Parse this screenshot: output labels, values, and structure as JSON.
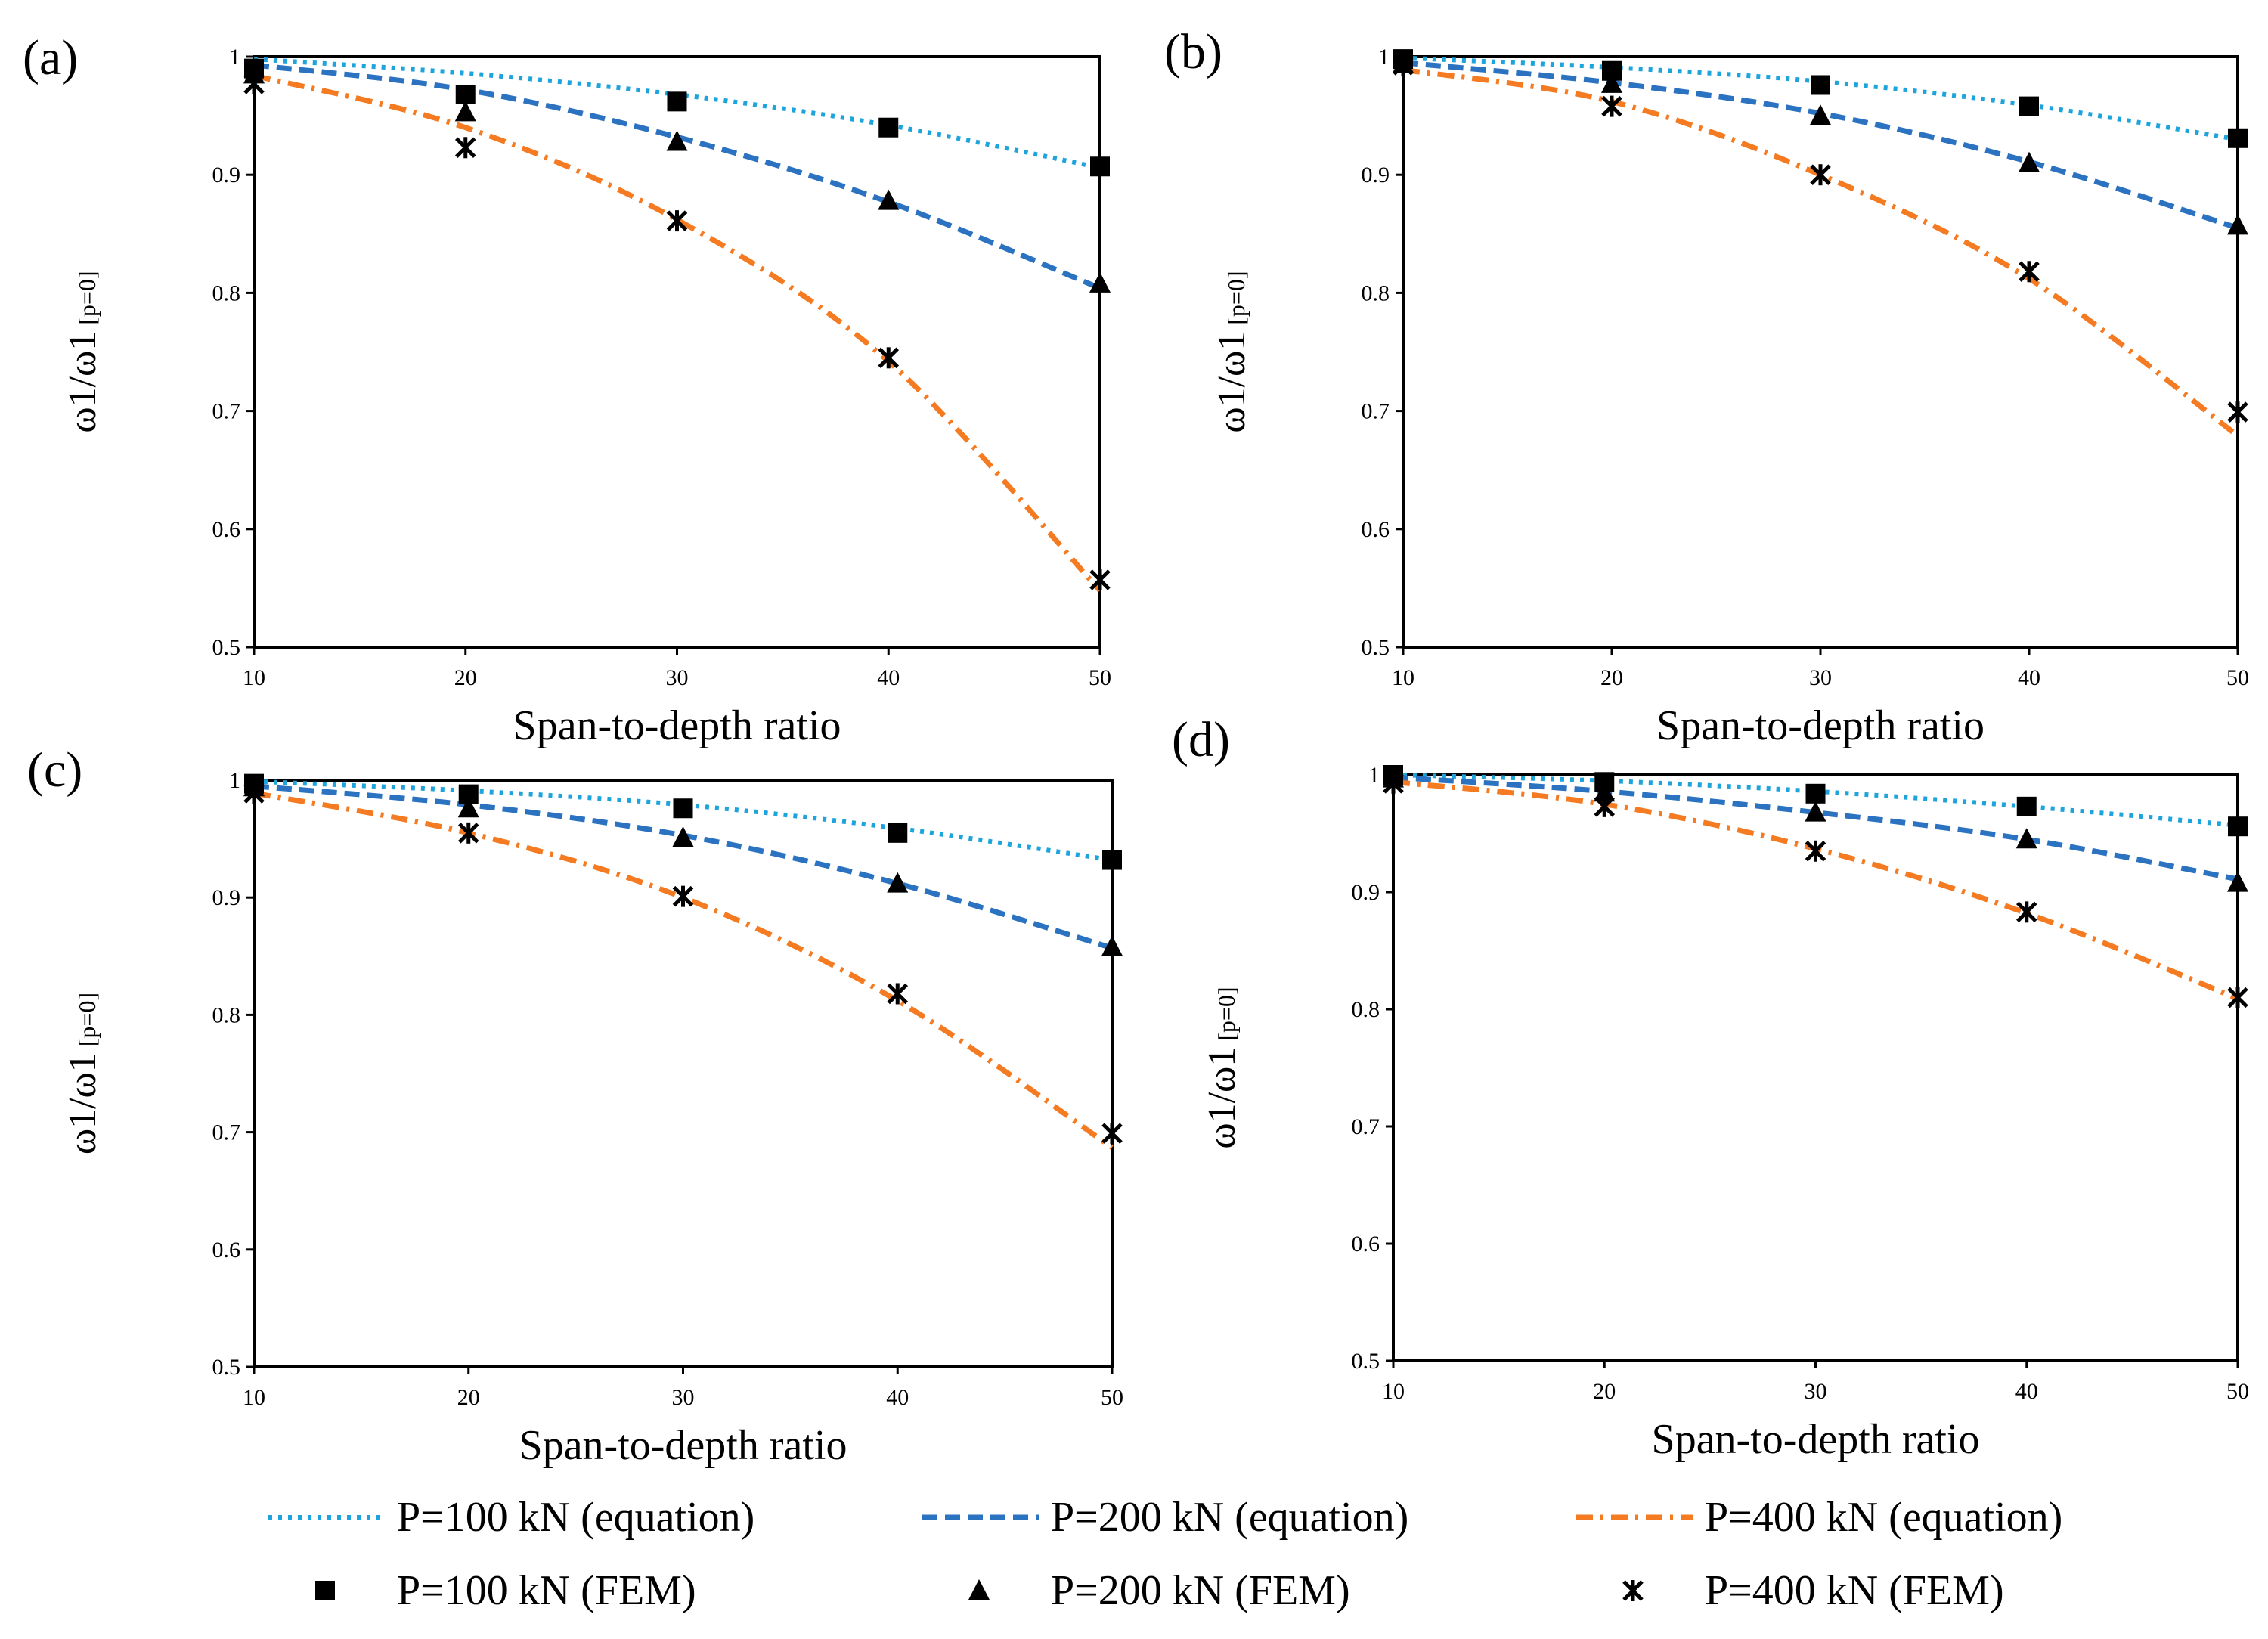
{
  "chart_data": [
    {
      "type": "line",
      "panel_label": "(a)",
      "xlabel": "Span-to-depth ratio",
      "ylabel_main": "ω1/ω1",
      "ylabel_sub": "[p=0]",
      "x": [
        10,
        20,
        30,
        40,
        50
      ],
      "xlim": [
        10,
        50
      ],
      "ylim": [
        0.5,
        1
      ],
      "xticks": [
        "10",
        "20",
        "30",
        "40",
        "50"
      ],
      "yticks": [
        "0.5",
        "0.6",
        "0.7",
        "0.8",
        "0.9",
        "1"
      ],
      "series": [
        {
          "name": "P=100 kN (equation)",
          "kind": "equation",
          "values": [
            0.998,
            0.986,
            0.968,
            0.942,
            0.906
          ]
        },
        {
          "name": "P=200 kN (equation)",
          "kind": "equation",
          "values": [
            0.993,
            0.972,
            0.932,
            0.877,
            0.804
          ]
        },
        {
          "name": "P=400 kN (equation)",
          "kind": "equation",
          "values": [
            0.984,
            0.94,
            0.862,
            0.742,
            0.548
          ]
        },
        {
          "name": "P=100 kN (FEM)",
          "kind": "fem",
          "values": [
            0.99,
            0.968,
            0.962,
            0.94,
            0.907
          ]
        },
        {
          "name": "P=200 kN (FEM)",
          "kind": "fem",
          "values": [
            0.985,
            0.953,
            0.928,
            0.878,
            0.808
          ]
        },
        {
          "name": "P=400 kN (FEM)",
          "kind": "fem",
          "values": [
            0.977,
            0.923,
            0.861,
            0.745,
            0.557
          ]
        }
      ]
    },
    {
      "type": "line",
      "panel_label": "(b)",
      "xlabel": "Span-to-depth ratio",
      "ylabel_main": "ω1/ω1",
      "ylabel_sub": "[p=0]",
      "x": [
        10,
        20,
        30,
        40,
        50
      ],
      "xlim": [
        10,
        50
      ],
      "ylim": [
        0.5,
        1
      ],
      "xticks": [
        "10",
        "20",
        "30",
        "40",
        "50"
      ],
      "yticks": [
        "0.5",
        "0.6",
        "0.7",
        "0.8",
        "0.9",
        "1"
      ],
      "series": [
        {
          "name": "P=100 kN (equation)",
          "kind": "equation",
          "values": [
            0.999,
            0.991,
            0.979,
            0.959,
            0.93
          ]
        },
        {
          "name": "P=200 kN (equation)",
          "kind": "equation",
          "values": [
            0.995,
            0.978,
            0.952,
            0.911,
            0.855
          ]
        },
        {
          "name": "P=400 kN (equation)",
          "kind": "equation",
          "values": [
            0.989,
            0.962,
            0.9,
            0.812,
            0.679
          ]
        },
        {
          "name": "P=100 kN (FEM)",
          "kind": "fem",
          "values": [
            0.998,
            0.988,
            0.976,
            0.958,
            0.931
          ]
        },
        {
          "name": "P=200 kN (FEM)",
          "kind": "fem",
          "values": [
            0.994,
            0.977,
            0.95,
            0.91,
            0.857
          ]
        },
        {
          "name": "P=400 kN (FEM)",
          "kind": "fem",
          "values": [
            0.993,
            0.958,
            0.9,
            0.818,
            0.699
          ]
        }
      ]
    },
    {
      "type": "line",
      "panel_label": "(c)",
      "xlabel": "Span-to-depth ratio",
      "ylabel_main": "ω1/ω1",
      "ylabel_sub": "[p=0]",
      "x": [
        10,
        20,
        30,
        40,
        50
      ],
      "xlim": [
        10,
        50
      ],
      "ylim": [
        0.5,
        1
      ],
      "xticks": [
        "10",
        "20",
        "30",
        "40",
        "50"
      ],
      "yticks": [
        "0.5",
        "0.6",
        "0.7",
        "0.8",
        "0.9",
        "1"
      ],
      "series": [
        {
          "name": "P=100 kN (equation)",
          "kind": "equation",
          "values": [
            0.999,
            0.991,
            0.979,
            0.959,
            0.932
          ]
        },
        {
          "name": "P=200 kN (equation)",
          "kind": "equation",
          "values": [
            0.995,
            0.979,
            0.953,
            0.912,
            0.857
          ]
        },
        {
          "name": "P=400 kN (equation)",
          "kind": "equation",
          "values": [
            0.989,
            0.955,
            0.9,
            0.812,
            0.687
          ]
        },
        {
          "name": "P=100 kN (FEM)",
          "kind": "fem",
          "values": [
            0.997,
            0.988,
            0.976,
            0.955,
            0.932
          ]
        },
        {
          "name": "P=200 kN (FEM)",
          "kind": "fem",
          "values": [
            0.994,
            0.976,
            0.951,
            0.912,
            0.858
          ]
        },
        {
          "name": "P=400 kN (FEM)",
          "kind": "fem",
          "values": [
            0.989,
            0.955,
            0.901,
            0.818,
            0.699
          ]
        }
      ]
    },
    {
      "type": "line",
      "panel_label": "(d)",
      "xlabel": "Span-to-depth ratio",
      "ylabel_main": "ω1/ω1",
      "ylabel_sub": "[p=0]",
      "x": [
        10,
        20,
        30,
        40,
        50
      ],
      "xlim": [
        10,
        50
      ],
      "ylim": [
        0.5,
        1
      ],
      "xticks": [
        "10",
        "20",
        "30",
        "40",
        "50"
      ],
      "yticks": [
        "0.5",
        "0.6",
        "0.7",
        "0.8",
        "0.9",
        "1"
      ],
      "series": [
        {
          "name": "P=100 kN (equation)",
          "kind": "equation",
          "values": [
            1.0,
            0.995,
            0.986,
            0.973,
            0.957
          ]
        },
        {
          "name": "P=200 kN (equation)",
          "kind": "equation",
          "values": [
            0.998,
            0.986,
            0.968,
            0.945,
            0.911
          ]
        },
        {
          "name": "P=400 kN (equation)",
          "kind": "equation",
          "values": [
            0.994,
            0.975,
            0.937,
            0.882,
            0.809
          ]
        },
        {
          "name": "P=100 kN (FEM)",
          "kind": "fem",
          "values": [
            1.0,
            0.994,
            0.984,
            0.973,
            0.956
          ]
        },
        {
          "name": "P=200 kN (FEM)",
          "kind": "fem",
          "values": [
            0.997,
            0.985,
            0.968,
            0.945,
            0.908
          ]
        },
        {
          "name": "P=400 kN (FEM)",
          "kind": "fem",
          "values": [
            0.993,
            0.973,
            0.935,
            0.883,
            0.81
          ]
        }
      ]
    }
  ],
  "legend": {
    "items": [
      {
        "label": "P=100 kN (equation)",
        "style": "dotted",
        "color": "#1ea4dc"
      },
      {
        "label": "P=200 kN (equation)",
        "style": "dashed",
        "color": "#2b72c0"
      },
      {
        "label": "P=400 kN (equation)",
        "style": "dashdot",
        "color": "#f47b22"
      },
      {
        "label": "P=100 kN (FEM)",
        "style": "square",
        "color": "#000000"
      },
      {
        "label": "P=200 kN (FEM)",
        "style": "triangle",
        "color": "#000000"
      },
      {
        "label": "P=400 kN (FEM)",
        "style": "star",
        "color": "#000000"
      }
    ]
  },
  "colors": {
    "p100_line": "#1ea4dc",
    "p200_line": "#2b72c0",
    "p400_line": "#f47b22",
    "markers": "#000000"
  }
}
